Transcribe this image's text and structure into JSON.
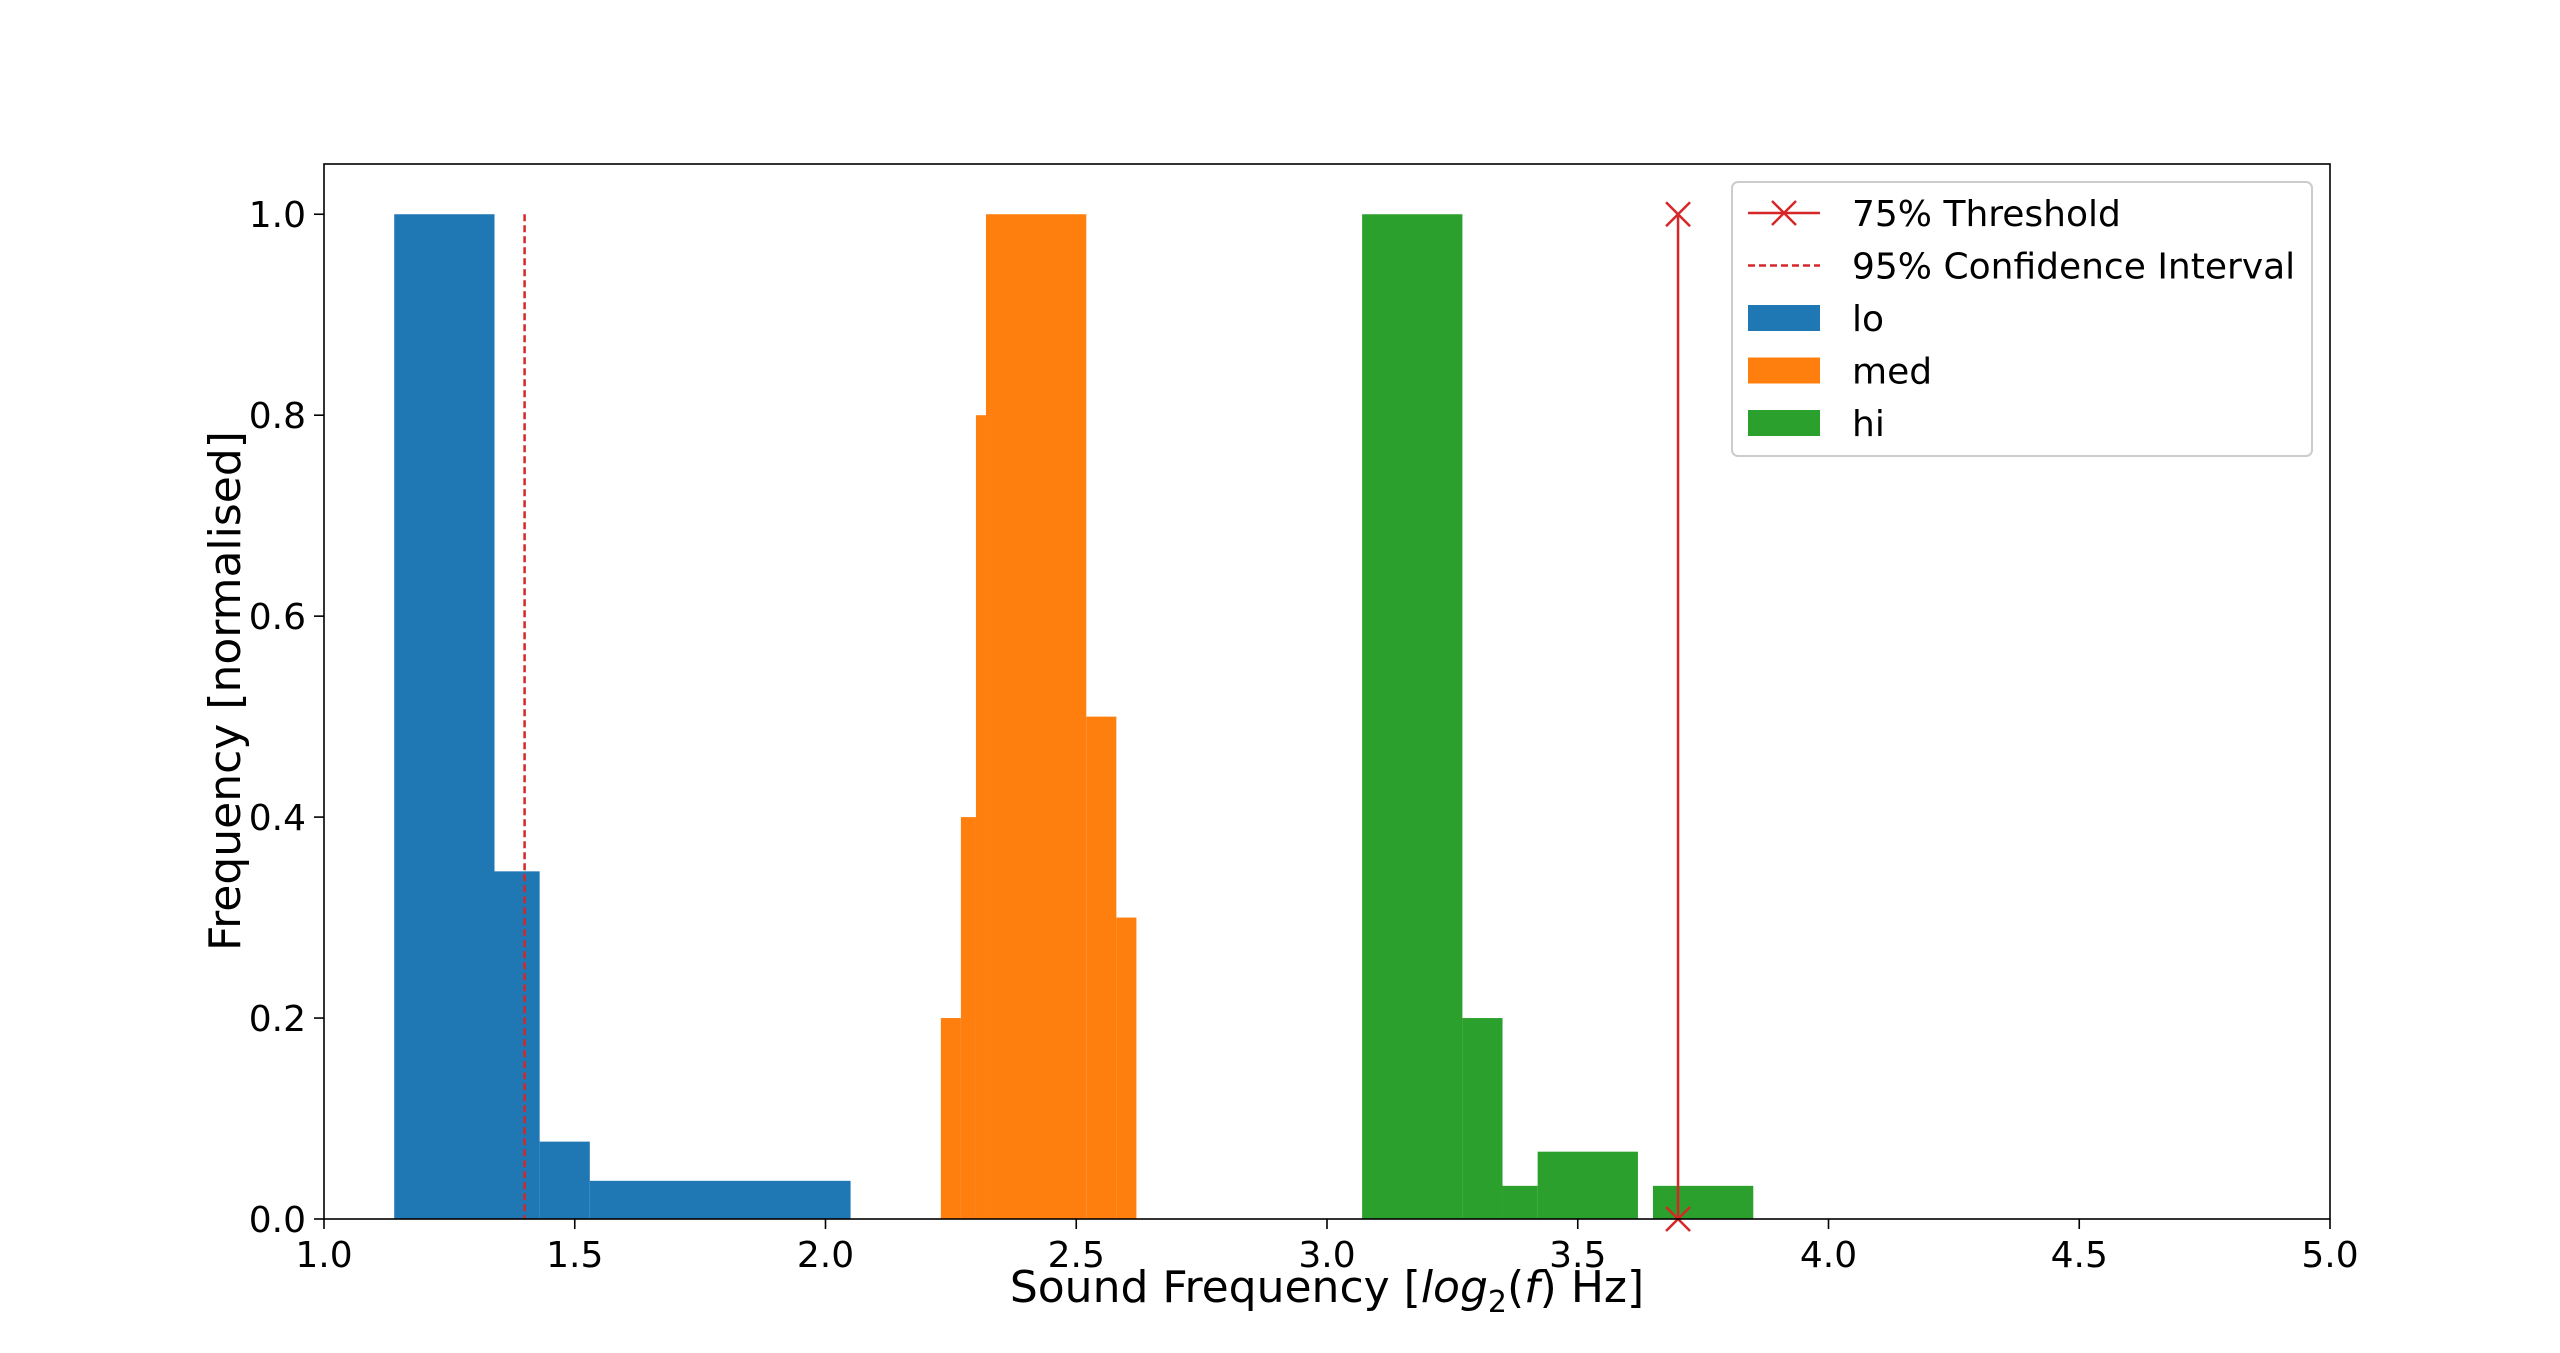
{
  "chart_data": {
    "type": "bar",
    "xlabel": "Sound Frequency [log2(f) Hz]",
    "ylabel": "Frequency [normalised]",
    "xlim": [
      1.0,
      5.0
    ],
    "ylim": [
      0.0,
      1.05
    ],
    "x_ticks": [
      {
        "value": 1.0,
        "label": "1.0"
      },
      {
        "value": 1.5,
        "label": "1.5"
      },
      {
        "value": 2.0,
        "label": "2.0"
      },
      {
        "value": 2.5,
        "label": "2.5"
      },
      {
        "value": 3.0,
        "label": "3.0"
      },
      {
        "value": 3.5,
        "label": "3.5"
      },
      {
        "value": 4.0,
        "label": "4.0"
      },
      {
        "value": 4.5,
        "label": "4.5"
      },
      {
        "value": 5.0,
        "label": "5.0"
      }
    ],
    "y_ticks": [
      {
        "value": 0.0,
        "label": "0.0"
      },
      {
        "value": 0.2,
        "label": "0.2"
      },
      {
        "value": 0.4,
        "label": "0.4"
      },
      {
        "value": 0.6,
        "label": "0.6"
      },
      {
        "value": 0.8,
        "label": "0.8"
      },
      {
        "value": 1.0,
        "label": "1.0"
      }
    ],
    "grid": false,
    "legend_position": "top-right",
    "series": [
      {
        "name": "lo",
        "color": "#1f77b4",
        "bins": [
          {
            "x0": 1.14,
            "x1": 1.34,
            "value": 1.0
          },
          {
            "x0": 1.34,
            "x1": 1.43,
            "value": 0.346
          },
          {
            "x0": 1.43,
            "x1": 1.53,
            "value": 0.077
          },
          {
            "x0": 1.53,
            "x1": 2.05,
            "value": 0.038
          }
        ]
      },
      {
        "name": "med",
        "color": "#ff7f0e",
        "bins": [
          {
            "x0": 2.23,
            "x1": 2.27,
            "value": 0.2
          },
          {
            "x0": 2.27,
            "x1": 2.3,
            "value": 0.4
          },
          {
            "x0": 2.3,
            "x1": 2.32,
            "value": 0.8
          },
          {
            "x0": 2.32,
            "x1": 2.52,
            "value": 1.0
          },
          {
            "x0": 2.52,
            "x1": 2.58,
            "value": 0.5
          },
          {
            "x0": 2.58,
            "x1": 2.62,
            "value": 0.3
          }
        ]
      },
      {
        "name": "hi",
        "color": "#2ca02c",
        "bins": [
          {
            "x0": 3.07,
            "x1": 3.27,
            "value": 1.0
          },
          {
            "x0": 3.27,
            "x1": 3.35,
            "value": 0.2
          },
          {
            "x0": 3.35,
            "x1": 3.42,
            "value": 0.033
          },
          {
            "x0": 3.42,
            "x1": 3.62,
            "value": 0.067
          },
          {
            "x0": 3.65,
            "x1": 3.85,
            "value": 0.033
          }
        ]
      }
    ],
    "threshold": {
      "name": "75% Threshold",
      "x": 3.7,
      "y_top": 1.0,
      "color": "#d62728"
    },
    "confidence_interval": {
      "name": "95% Confidence Interval",
      "x": 1.4,
      "y_top": 1.0,
      "color": "#d62728"
    }
  }
}
